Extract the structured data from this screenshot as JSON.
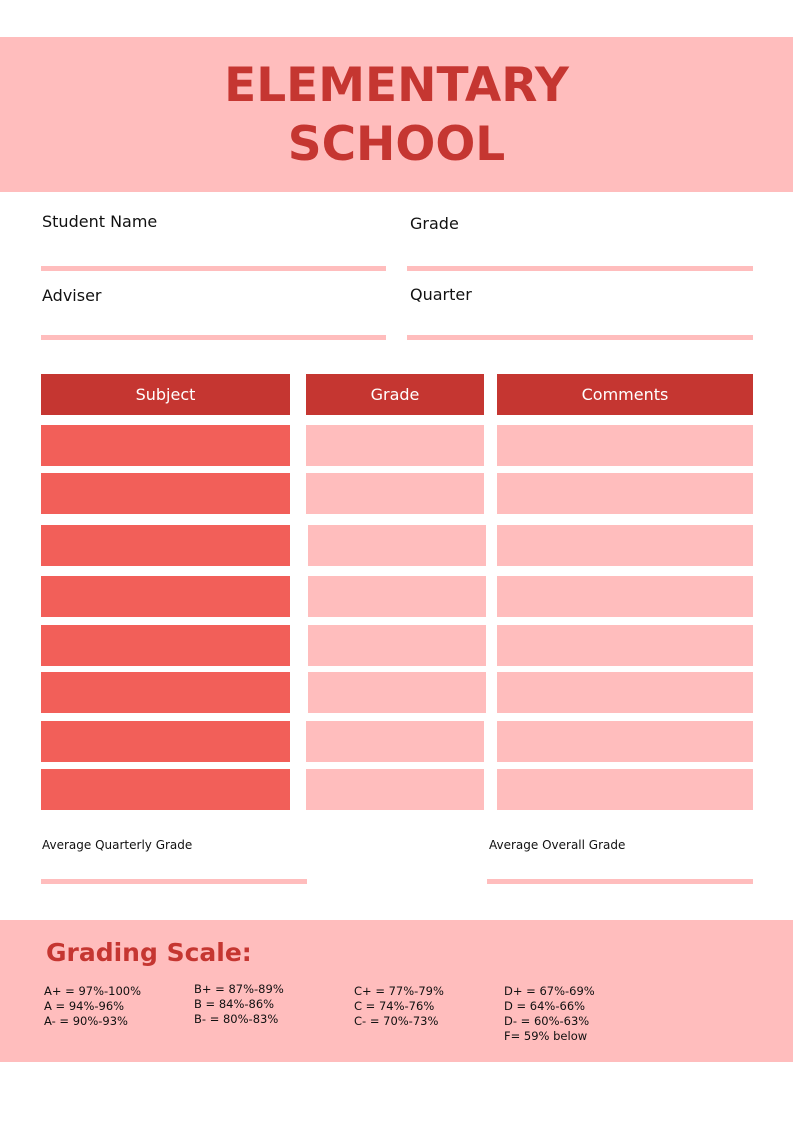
{
  "header": {
    "title_line1": "ELEMENTARY",
    "title_line2": "SCHOOL"
  },
  "fields": {
    "student_name": "Student Name",
    "grade": "Grade",
    "adviser": "Adviser",
    "quarter": "Quarter"
  },
  "table": {
    "columns": [
      "Subject",
      "Grade",
      "Comments"
    ],
    "rows": 8
  },
  "averages": {
    "quarterly": "Average Quarterly Grade",
    "overall": "Average Overall Grade"
  },
  "grading_scale": {
    "title": "Grading Scale:",
    "columns": [
      [
        "A+ = 97%-100%",
        "A = 94%-96%",
        "A- = 90%-93%"
      ],
      [
        "B+ = 87%-89%",
        "B = 84%-86%",
        "B- = 80%-83%"
      ],
      [
        "C+ = 77%-79%",
        "C = 74%-76%",
        "C- = 70%-73%"
      ],
      [
        "D+ = 67%-69%",
        "D = 64%-66%",
        "D- = 60%-63%",
        "F= 59% below"
      ]
    ]
  },
  "colors": {
    "dark_red": "#C53631",
    "red": "#F25F59",
    "pink": "#FFBDBD"
  }
}
